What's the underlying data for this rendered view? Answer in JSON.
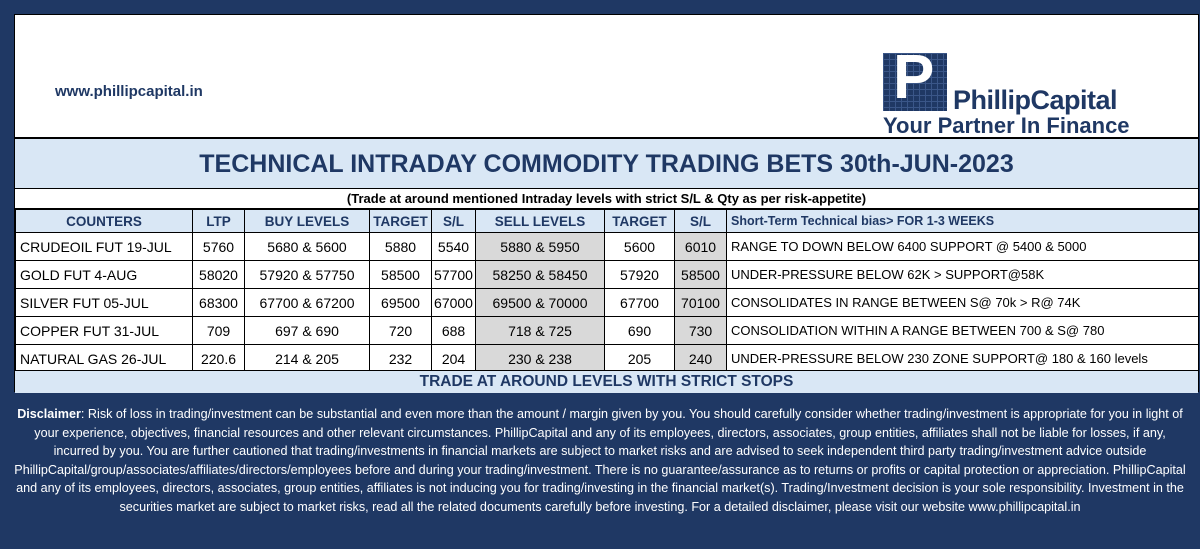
{
  "header": {
    "url": "www.phillipcapital.in",
    "logo_letter": "P",
    "logo_name": "PhillipCapital",
    "logo_tagline": "Your Partner In Finance"
  },
  "title": "TECHNICAL INTRADAY COMMODITY TRADING BETS 30th-JUN-2023",
  "subtitle": "(Trade at around mentioned Intraday levels with strict S/L & Qty as per risk-appetite)",
  "table": {
    "headers": [
      "COUNTERS",
      "LTP",
      "BUY LEVELS",
      "TARGET",
      "S/L",
      "SELL LEVELS",
      "TARGET",
      "S/L",
      "Short-Term Technical bias> FOR 1-3 WEEKS"
    ],
    "rows": [
      [
        "CRUDEOIL FUT 19-JUL",
        "5760",
        "5680 & 5600",
        "5880",
        "5540",
        "5880 & 5950",
        "5600",
        "6010",
        "RANGE TO DOWN BELOW 6400 SUPPORT @ 5400 & 5000"
      ],
      [
        "GOLD FUT 4-AUG",
        "58020",
        "57920 & 57750",
        "58500",
        "57700",
        "58250 & 58450",
        "57920",
        "58500",
        "UNDER-PRESSURE BELOW 62K > SUPPORT@58K"
      ],
      [
        "SILVER FUT 05-JUL",
        "68300",
        "67700 & 67200",
        "69500",
        "67000",
        "69500 & 70000",
        "67700",
        "70100",
        "CONSOLIDATES IN RANGE BETWEEN S@ 70k > R@ 74K"
      ],
      [
        "COPPER FUT 31-JUL",
        "709",
        "697 & 690",
        "720",
        "688",
        "718 & 725",
        "690",
        "730",
        "CONSOLIDATION WITHIN A RANGE BETWEEN 700 & S@ 780"
      ],
      [
        "NATURAL GAS 26-JUL",
        "220.6",
        "214 & 205",
        "232",
        "204",
        "230 & 238",
        "205",
        "240",
        "UNDER-PRESSURE BELOW 230 ZONE SUPPORT@ 180 & 160 levels"
      ]
    ]
  },
  "footer_bar": "TRADE AT AROUND LEVELS WITH STRICT STOPS",
  "disclaimer": {
    "label": "Disclaimer",
    "text": ": Risk of loss in trading/investment can be substantial and even more than the amount / margin given by you. You should carefully consider whether trading/investment is appropriate for you in light of your experience, objectives, financial resources and other relevant circumstances. PhillipCapital and any of its employees, directors, associates, group entities, affiliates shall not be liable for losses, if any, incurred by you. You are further cautioned that trading/investments in financial markets are subject to market risks and are advised to seek independent third party trading/investment advice outside PhillipCapital/group/associates/affiliates/directors/employees before and during your trading/investment. There is no guarantee/assurance as to returns or profits or capital protection or appreciation. PhillipCapital and any of its employees, directors, associates, group entities, affiliates is not inducing you for trading/investing in the financial market(s). Trading/Investment decision is your sole responsibility. Investment in the securities market are subject to market risks, read all the related documents carefully before investing. For a detailed disclaimer, please visit our website www.phillipcapital.in"
  },
  "colors": {
    "background": "#1f3864",
    "header_fill": "#d9e7f5",
    "sell_fill": "#d9d9d9",
    "text_blue": "#1f3864"
  }
}
